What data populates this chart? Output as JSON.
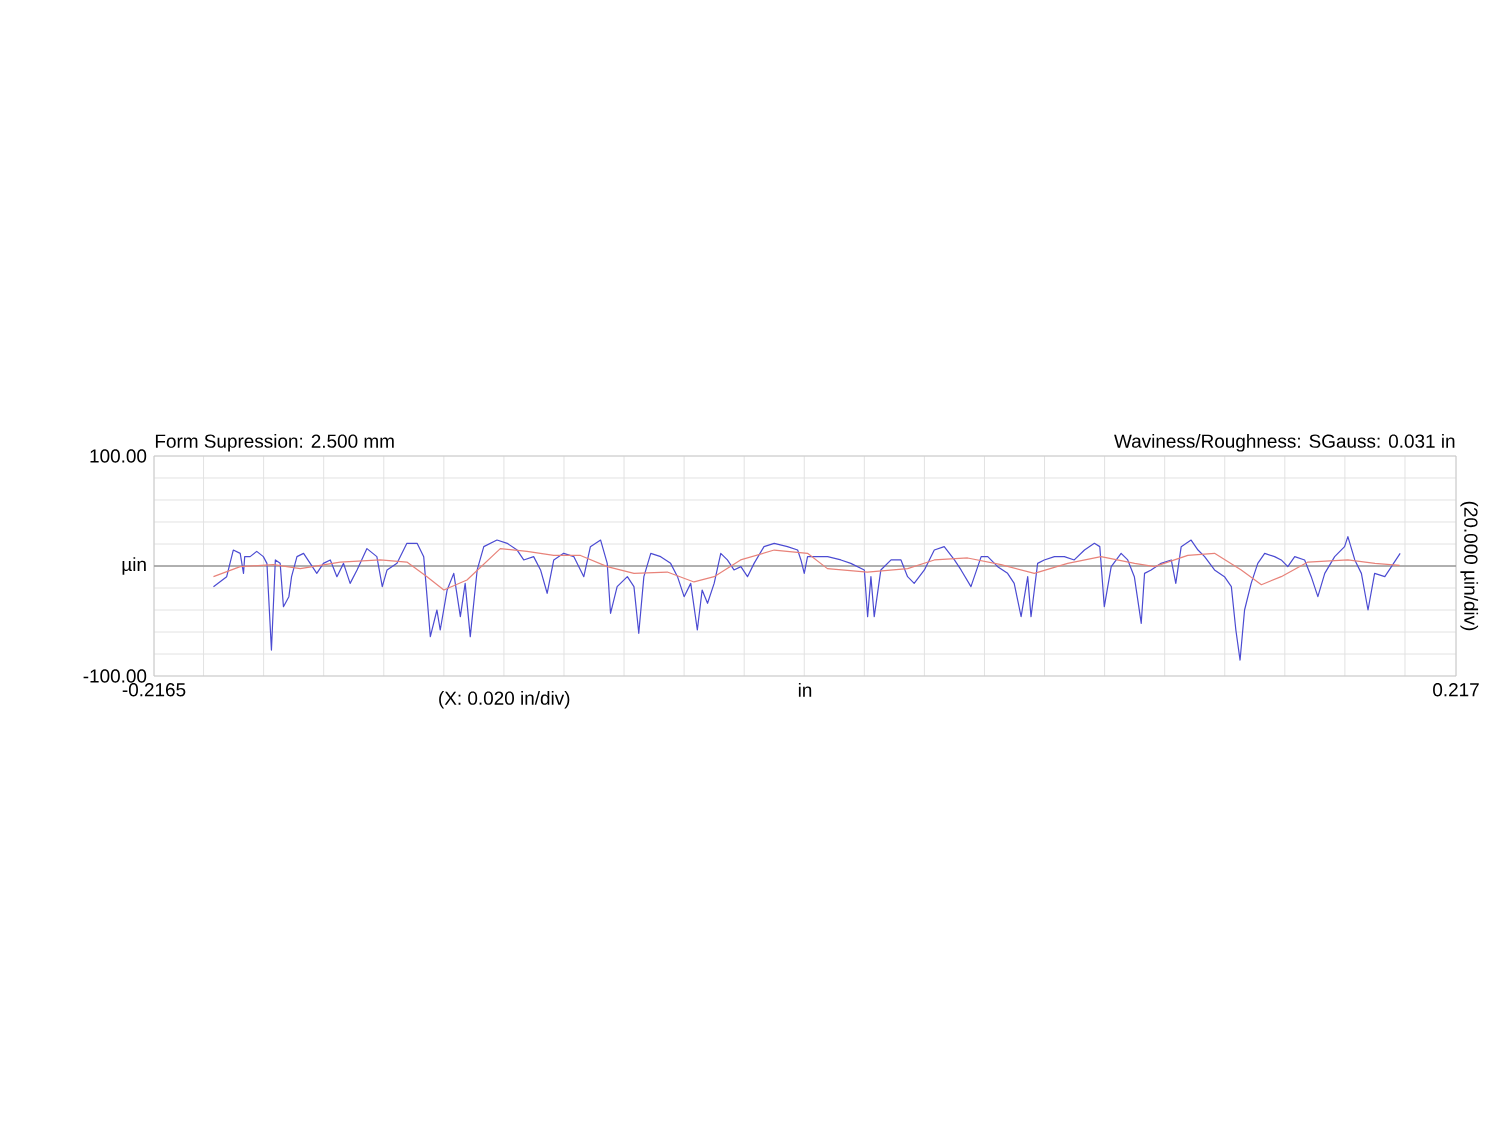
{
  "chart_data": {
    "type": "line",
    "title": "Form Supression: 2.500 mm",
    "subtitle": "Waviness/Roughness: SGauss: 0.031 in",
    "xlabel": "in",
    "y2label": "(20.000 µin/div)",
    "annotations": [
      "(X: 0.020 in/div)"
    ],
    "xlim": [
      -0.2165,
      0.217
    ],
    "xticks": [
      -0.2165,
      {
        "value": -0.2,
        "label": null
      },
      {
        "value": -0.18,
        "label": null
      },
      {
        "value": -0.16,
        "label": null
      },
      {
        "value": -0.14,
        "label": null
      },
      {
        "value": -0.12,
        "label": null
      },
      {
        "value": -0.1,
        "label": null
      },
      {
        "value": -0.08,
        "label": null
      },
      {
        "value": -0.06,
        "label": null
      },
      {
        "value": -0.04,
        "label": null
      },
      {
        "value": -0.02,
        "label": null
      },
      {
        "value": 0,
        "label": null
      },
      {
        "value": 0.02,
        "label": null
      },
      {
        "value": 0.04,
        "label": null
      },
      {
        "value": 0.06,
        "label": null
      },
      {
        "value": 0.08,
        "label": null
      },
      {
        "value": 0.1,
        "label": null
      },
      {
        "value": 0.12,
        "label": null
      },
      {
        "value": 0.14,
        "label": null
      },
      {
        "value": 0.16,
        "label": null
      },
      {
        "value": 0.18,
        "label": null
      },
      {
        "value": 0.2,
        "label": null
      },
      0.217
    ],
    "ylim": [
      -100,
      100
    ],
    "yticks": [
      {
        "value": -100,
        "label": "-100.00"
      },
      {
        "value": -80,
        "label": null
      },
      {
        "value": -60,
        "label": null
      },
      {
        "value": -40,
        "label": null
      },
      {
        "value": -20,
        "label": null
      },
      {
        "value": 0,
        "label": "µin"
      },
      {
        "value": 20,
        "label": null
      },
      {
        "value": 40,
        "label": null
      },
      {
        "value": 60,
        "label": null
      },
      {
        "value": 80,
        "label": null
      },
      {
        "value": 100,
        "label": "100.00"
      }
    ],
    "grid": true,
    "marker": "none",
    "ref_lines": [
      {
        "axis": "y",
        "value": 0,
        "color": "#9a9a9a"
      }
    ],
    "series": [
      {
        "color": "#4b4bd2",
        "x": [
          -0.1967,
          -0.1923,
          -0.1901,
          -0.1878,
          -0.1867,
          -0.1863,
          -0.1845,
          -0.1823,
          -0.1801,
          -0.1789,
          -0.1774,
          -0.1761,
          -0.1745,
          -0.1734,
          -0.1716,
          -0.1707,
          -0.1689,
          -0.1667,
          -0.1645,
          -0.1623,
          -0.1601,
          -0.1578,
          -0.1556,
          -0.1534,
          -0.1512,
          -0.1489,
          -0.1456,
          -0.1423,
          -0.1405,
          -0.1389,
          -0.1356,
          -0.1323,
          -0.1289,
          -0.1267,
          -0.1245,
          -0.1223,
          -0.1212,
          -0.1189,
          -0.1167,
          -0.1145,
          -0.1129,
          -0.1112,
          -0.1089,
          -0.1067,
          -0.1023,
          -0.0989,
          -0.0956,
          -0.0934,
          -0.0901,
          -0.0878,
          -0.0856,
          -0.0834,
          -0.0801,
          -0.0767,
          -0.0734,
          -0.0712,
          -0.0678,
          -0.0656,
          -0.0645,
          -0.0623,
          -0.0589,
          -0.0567,
          -0.0551,
          -0.0534,
          -0.0511,
          -0.0478,
          -0.0445,
          -0.0422,
          -0.04,
          -0.0378,
          -0.0356,
          -0.034,
          -0.0322,
          -0.03,
          -0.0278,
          -0.0256,
          -0.0234,
          -0.0211,
          -0.0189,
          -0.0167,
          -0.0134,
          -0.01,
          -0.0056,
          -0.0022,
          -0.0011,
          0.0,
          0.0011,
          0.0044,
          0.0078,
          0.0122,
          0.0155,
          0.02,
          0.0211,
          0.0222,
          0.0233,
          0.0255,
          0.0289,
          0.0322,
          0.0344,
          0.0366,
          0.04,
          0.0433,
          0.0466,
          0.05,
          0.0522,
          0.0555,
          0.0589,
          0.0611,
          0.0644,
          0.0677,
          0.0699,
          0.0722,
          0.0744,
          0.0755,
          0.0777,
          0.0799,
          0.0833,
          0.0866,
          0.0899,
          0.0933,
          0.0966,
          0.0984,
          0.0999,
          0.1022,
          0.1055,
          0.1077,
          0.1099,
          0.1122,
          0.1133,
          0.1155,
          0.1188,
          0.1222,
          0.1237,
          0.1255,
          0.1288,
          0.1311,
          0.1333,
          0.1366,
          0.1399,
          0.1422,
          0.1437,
          0.1451,
          0.1466,
          0.1488,
          0.151,
          0.1533,
          0.1566,
          0.1588,
          0.161,
          0.1633,
          0.1666,
          0.1688,
          0.171,
          0.1733,
          0.1766,
          0.1799,
          0.181,
          0.1833,
          0.1855,
          0.1877,
          0.1899,
          0.1933,
          0.1955,
          0.1984
        ],
        "values": [
          -18.8,
          -9.7,
          14.5,
          11.5,
          -6.7,
          8.5,
          8.5,
          13.3,
          8.5,
          2.4,
          -76.4,
          5.5,
          2.4,
          -37.0,
          -27.9,
          -9.7,
          8.5,
          11.5,
          2.4,
          -6.7,
          2.4,
          5.5,
          -9.7,
          2.4,
          -15.8,
          -3.6,
          15.8,
          8.5,
          -18.8,
          -3.6,
          2.4,
          20.6,
          20.6,
          8.5,
          -64.2,
          -40.0,
          -58.2,
          -21.8,
          -6.7,
          -46.1,
          -15.8,
          -64.2,
          -3.6,
          17.6,
          23.6,
          20.6,
          14.5,
          5.5,
          8.5,
          -3.6,
          -24.8,
          5.5,
          11.5,
          8.5,
          -9.7,
          17.6,
          23.6,
          2.4,
          -43.0,
          -18.8,
          -9.7,
          -18.8,
          -61.2,
          -9.7,
          11.5,
          8.5,
          2.4,
          -9.7,
          -27.9,
          -15.8,
          -58.2,
          -21.8,
          -33.9,
          -15.8,
          11.5,
          5.5,
          -3.6,
          -0.6,
          -9.7,
          2.4,
          17.6,
          20.6,
          17.6,
          14.5,
          5.5,
          -6.7,
          8.5,
          8.5,
          8.5,
          5.5,
          2.4,
          -3.6,
          -46.1,
          -9.7,
          -46.1,
          -3.6,
          5.5,
          5.5,
          -9.7,
          -15.8,
          -3.6,
          14.5,
          17.6,
          5.5,
          -3.6,
          -18.8,
          8.5,
          8.5,
          -0.6,
          -6.7,
          -15.8,
          -46.1,
          -9.7,
          -46.1,
          2.4,
          5.5,
          8.5,
          8.5,
          5.5,
          14.5,
          20.6,
          17.6,
          -37.0,
          -0.6,
          11.5,
          5.5,
          -9.7,
          -52.1,
          -6.7,
          -3.6,
          2.4,
          5.5,
          -15.8,
          17.6,
          23.6,
          14.5,
          8.5,
          -3.6,
          -9.7,
          -18.8,
          -58.2,
          -85.5,
          -40.0,
          -15.8,
          2.4,
          11.5,
          8.5,
          5.5,
          -0.6,
          8.5,
          5.5,
          -9.7,
          -27.9,
          -6.7,
          8.5,
          17.6,
          26.7,
          5.5,
          -6.7,
          -40.0,
          -6.7,
          -9.7,
          -0.6,
          11.5
        ]
      },
      {
        "color": "#e8837a",
        "x": [
          -0.1967,
          -0.1878,
          -0.1767,
          -0.1678,
          -0.1545,
          -0.1412,
          -0.1323,
          -0.1256,
          -0.12,
          -0.1123,
          -0.1012,
          -0.0923,
          -0.0834,
          -0.0745,
          -0.0656,
          -0.0567,
          -0.0456,
          -0.0367,
          -0.03,
          -0.0212,
          -0.01,
          0.0011,
          0.0077,
          0.021,
          0.0344,
          0.0433,
          0.0544,
          0.0655,
          0.0766,
          0.0877,
          0.0988,
          0.11,
          0.1166,
          0.1277,
          0.1366,
          0.1455,
          0.1522,
          0.1588,
          0.1677,
          0.181,
          0.19,
          0.1982
        ],
        "values": [
          -9.7,
          -0.6,
          1.2,
          -2.4,
          3.6,
          5.5,
          3.6,
          -9.7,
          -21.8,
          -12.7,
          15.8,
          13.3,
          9.6,
          9.6,
          -0.6,
          -6.7,
          -5.5,
          -14.5,
          -9.7,
          5.5,
          14.5,
          11.5,
          -2.4,
          -5.5,
          -2.4,
          5.5,
          7.3,
          1.2,
          -6.7,
          2.4,
          8.5,
          2.4,
          -0.6,
          9.6,
          11.5,
          -3.6,
          -17.0,
          -9.7,
          3.6,
          5.5,
          2.4,
          0.6
        ]
      }
    ]
  }
}
